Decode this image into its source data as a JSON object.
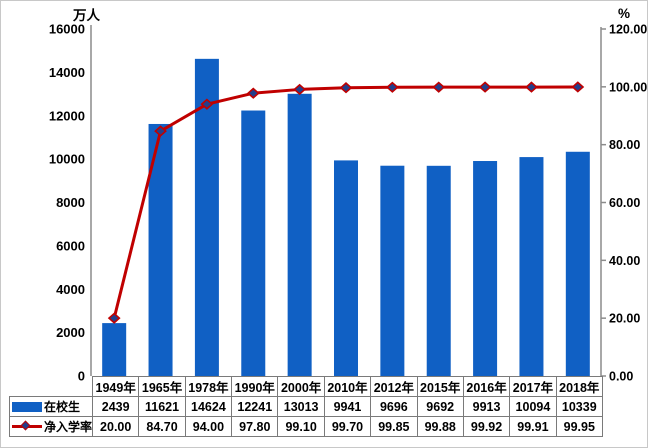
{
  "chart_data": {
    "type": "bar+line",
    "categories": [
      "1949年",
      "1965年",
      "1978年",
      "1990年",
      "2000年",
      "2010年",
      "2012年",
      "2015年",
      "2016年",
      "2017年",
      "2018年"
    ],
    "series": [
      {
        "name": "在校生",
        "type": "bar",
        "axis": "left",
        "color": "#1060C4",
        "values": [
          2439,
          11621,
          14624,
          12241,
          13013,
          9941,
          9696,
          9692,
          9913,
          10094,
          10339
        ]
      },
      {
        "name": "净入学率",
        "type": "line",
        "axis": "right",
        "color": "#C00000",
        "marker": "diamond",
        "marker_color": "#233E8B",
        "values": [
          20.0,
          84.7,
          94.0,
          97.8,
          99.1,
          99.7,
          99.85,
          99.88,
          99.92,
          99.91,
          99.95
        ]
      }
    ],
    "left_axis": {
      "title": "万人",
      "min": 0,
      "max": 16000,
      "step": 2000,
      "decimals": 0
    },
    "right_axis": {
      "title": "%",
      "min": 0,
      "max": 120,
      "step": 20,
      "decimals": 2
    },
    "grid": false,
    "legend_position": "table-left",
    "data_table_shown": true,
    "axis_color": "#8c8c8c"
  }
}
